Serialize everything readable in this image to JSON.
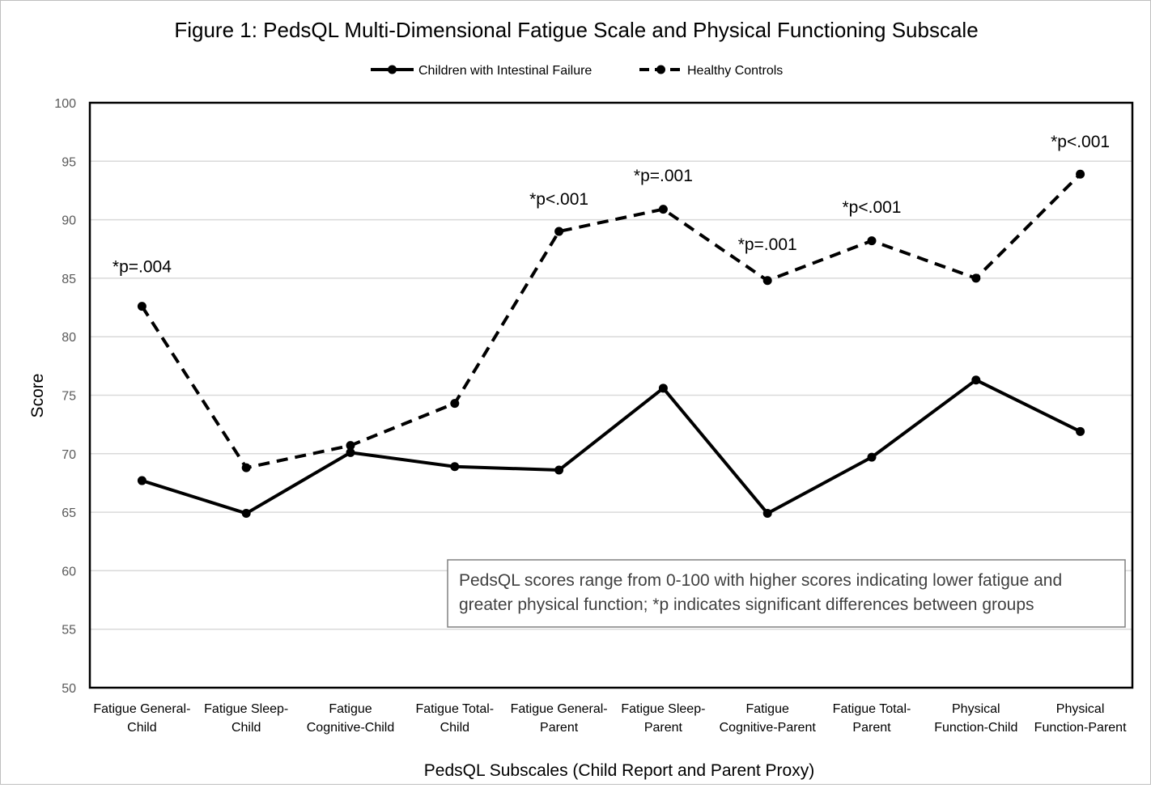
{
  "chart_data": {
    "type": "line",
    "title": "Figure 1: PedsQL Multi-Dimensional Fatigue Scale and Physical Functioning Subscale",
    "xlabel": "PedsQL Subscales (Child Report and Parent Proxy)",
    "ylabel": "Score",
    "ylim": [
      50,
      100
    ],
    "ytick_step": 5,
    "grid": true,
    "legend_position": "top-center",
    "categories": [
      [
        "Fatigue General-",
        "Child"
      ],
      [
        "Fatigue Sleep-",
        "Child"
      ],
      [
        "Fatigue",
        "Cognitive-Child"
      ],
      [
        "Fatigue Total-",
        "Child"
      ],
      [
        "Fatigue General-",
        "Parent"
      ],
      [
        "Fatigue Sleep-",
        "Parent"
      ],
      [
        "Fatigue",
        "Cognitive-Parent"
      ],
      [
        "Fatigue Total-",
        "Parent"
      ],
      [
        "Physical",
        "Function-Child"
      ],
      [
        "Physical",
        "Function-Parent"
      ]
    ],
    "series": [
      {
        "name": "Children with Intestinal Failure",
        "style": "solid",
        "color": "#000000",
        "values": [
          67.7,
          64.9,
          70.1,
          68.9,
          68.6,
          75.6,
          64.9,
          69.7,
          76.3,
          71.9
        ]
      },
      {
        "name": "Healthy Controls",
        "style": "dashed",
        "color": "#000000",
        "values": [
          82.6,
          68.8,
          70.7,
          74.3,
          89.0,
          90.9,
          84.8,
          88.2,
          85.0,
          93.9
        ]
      }
    ],
    "annotations": [
      {
        "text": "*p=.004",
        "category_index": 0,
        "y": 85.5
      },
      {
        "text": "*p<.001",
        "category_index": 4,
        "y": 91.3
      },
      {
        "text": "*p=.001",
        "category_index": 5,
        "y": 93.3
      },
      {
        "text": "*p=.001",
        "category_index": 6,
        "y": 87.4
      },
      {
        "text": "*p<.001",
        "category_index": 7,
        "y": 90.6
      },
      {
        "text": "*p<.001",
        "category_index": 9,
        "y": 96.2
      }
    ],
    "note": [
      "PedsQL scores range from 0-100 with higher scores indicating lower fatigue and",
      "greater physical function; *p indicates significant differences between groups"
    ]
  }
}
